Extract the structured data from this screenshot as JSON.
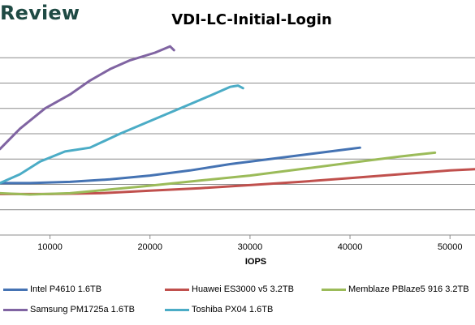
{
  "header": {
    "brand": "Review"
  },
  "chart_data": {
    "type": "line",
    "title": "VDI-LC-Initial-Login",
    "xlabel": "IOPS",
    "ylabel": "",
    "xlim": [
      5000,
      52500
    ],
    "ylim": [
      0,
      8
    ],
    "x_ticks": [
      10000,
      20000,
      30000,
      40000,
      50000
    ],
    "x_tick_labels": [
      "10000",
      "20000",
      "30000",
      "40000",
      "50000"
    ],
    "y_gridlines": [
      1,
      2,
      3,
      4,
      5,
      6,
      7
    ],
    "grid": "horizontal",
    "legend_position": "bottom",
    "series": [
      {
        "name": "Intel P4610 1.6TB",
        "color": "#4573b3",
        "points": [
          [
            5000,
            2.05
          ],
          [
            8000,
            2.05
          ],
          [
            12000,
            2.1
          ],
          [
            16000,
            2.2
          ],
          [
            20000,
            2.35
          ],
          [
            24000,
            2.55
          ],
          [
            28000,
            2.8
          ],
          [
            32000,
            3.0
          ],
          [
            36000,
            3.2
          ],
          [
            40000,
            3.4
          ],
          [
            41000,
            3.45
          ]
        ]
      },
      {
        "name": "Huawei ES3000 v5 3.2TB",
        "color": "#c0504d",
        "points": [
          [
            5000,
            1.62
          ],
          [
            10000,
            1.62
          ],
          [
            15000,
            1.65
          ],
          [
            20000,
            1.75
          ],
          [
            25000,
            1.85
          ],
          [
            30000,
            1.97
          ],
          [
            35000,
            2.1
          ],
          [
            40000,
            2.25
          ],
          [
            45000,
            2.4
          ],
          [
            50000,
            2.55
          ],
          [
            52500,
            2.6
          ]
        ]
      },
      {
        "name": "Memblaze PBlaze5 916 3.2TB",
        "color": "#9bbb59",
        "points": [
          [
            5000,
            1.65
          ],
          [
            8000,
            1.6
          ],
          [
            12000,
            1.65
          ],
          [
            16000,
            1.8
          ],
          [
            20000,
            1.95
          ],
          [
            25000,
            2.15
          ],
          [
            30000,
            2.35
          ],
          [
            35000,
            2.6
          ],
          [
            40000,
            2.85
          ],
          [
            45000,
            3.1
          ],
          [
            48500,
            3.25
          ]
        ]
      },
      {
        "name": "Samsung PM1725a 1.6TB",
        "color": "#8064a2",
        "points": [
          [
            5000,
            3.4
          ],
          [
            7000,
            4.2
          ],
          [
            9500,
            5.0
          ],
          [
            12000,
            5.55
          ],
          [
            14000,
            6.1
          ],
          [
            16000,
            6.55
          ],
          [
            18000,
            6.9
          ],
          [
            20500,
            7.2
          ],
          [
            22000,
            7.45
          ],
          [
            22400,
            7.3
          ]
        ]
      },
      {
        "name": "Toshiba PX04 1.6TB",
        "color": "#4bacc6",
        "points": [
          [
            5000,
            2.05
          ],
          [
            7000,
            2.4
          ],
          [
            9000,
            2.9
          ],
          [
            11500,
            3.3
          ],
          [
            14000,
            3.45
          ],
          [
            17000,
            4.0
          ],
          [
            20000,
            4.5
          ],
          [
            23000,
            5.0
          ],
          [
            26000,
            5.5
          ],
          [
            28000,
            5.85
          ],
          [
            28800,
            5.9
          ],
          [
            29300,
            5.8
          ]
        ]
      }
    ]
  }
}
